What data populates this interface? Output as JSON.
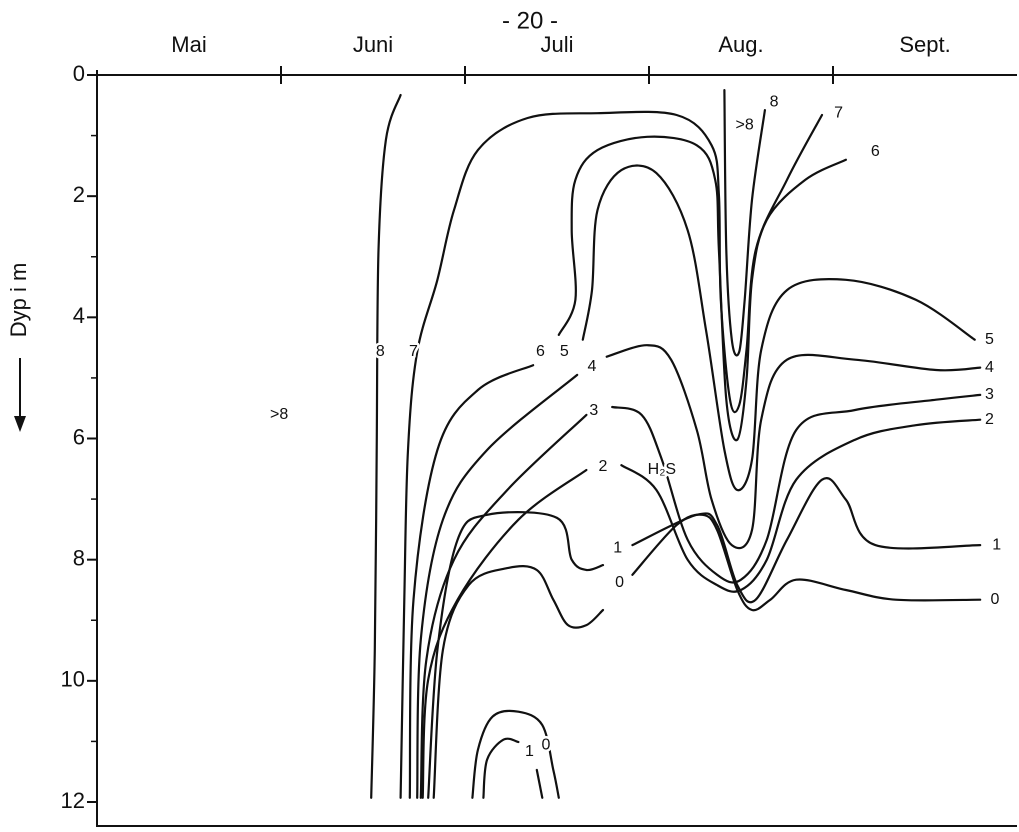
{
  "chart_data": {
    "type": "contour",
    "page_number": "- 20 -",
    "y_label": "Dyp i m",
    "categories": [
      "Mai",
      "Juni",
      "Juli",
      "Aug.",
      "Sept."
    ],
    "xlim": [
      0,
      5
    ],
    "xticks": [
      1,
      2,
      3,
      4
    ],
    "ylim": [
      0,
      12
    ],
    "y_reversed": true,
    "yticks": [
      0,
      2,
      4,
      6,
      8,
      10,
      12
    ],
    "yminor_ticks": [
      1,
      3,
      5,
      7,
      9,
      11
    ],
    "color": "#111111",
    "series": [
      {
        "x": [
          1.65,
          1.57,
          1.53,
          1.52,
          1.51,
          1.49,
          null,
          3.41,
          3.42,
          3.45,
          3.49,
          3.52,
          3.56,
          3.63
        ],
        "values": [
          0.33,
          1.07,
          2.89,
          6.19,
          9.49,
          11.93,
          null,
          0.25,
          2.89,
          4.37,
          4.57,
          3.71,
          2.06,
          0.58
        ]
      },
      {
        "x": [
          1.65,
          1.67,
          1.69,
          1.74,
          1.85,
          1.94,
          2.07,
          2.34,
          2.72,
          3.15,
          3.34,
          3.38,
          3.39,
          3.44,
          3.49,
          3.53,
          3.58,
          3.75,
          3.94
        ],
        "values": [
          11.93,
          8.66,
          6.19,
          4.57,
          3.38,
          2.23,
          1.24,
          0.71,
          0.63,
          0.66,
          1.16,
          1.98,
          3.71,
          5.36,
          5.45,
          4.54,
          2.89,
          1.73,
          0.66
        ]
      },
      {
        "x": [
          1.7,
          1.72,
          1.85,
          2.07,
          2.37,
          null,
          2.51,
          2.6,
          2.58,
          2.6,
          2.72,
          2.99,
          3.26,
          3.36,
          3.38,
          3.42,
          3.48,
          3.53,
          3.56,
          3.64,
          3.85,
          4.07
        ],
        "values": [
          11.93,
          8.66,
          6.19,
          5.2,
          4.79,
          null,
          4.29,
          3.71,
          2.56,
          1.73,
          1.24,
          1.02,
          1.16,
          1.73,
          2.89,
          5.36,
          6.02,
          5.03,
          3.38,
          2.39,
          1.73,
          1.4
        ]
      },
      {
        "x": [
          2.64,
          2.69,
          2.72,
          2.85,
          3.04,
          3.21,
          3.31,
          3.41,
          3.48,
          3.56,
          3.61,
          3.75,
          4.07,
          4.45,
          4.77
        ],
        "values": [
          4.37,
          3.55,
          2.23,
          1.57,
          1.62,
          2.56,
          4.21,
          6.19,
          6.85,
          6.35,
          4.54,
          3.55,
          3.38,
          3.71,
          4.37
        ]
      },
      {
        "x": [
          1.74,
          1.76,
          1.88,
          2.12,
          2.61,
          null,
          2.77,
          2.99,
          3.12,
          3.26,
          3.34,
          3.45,
          3.56,
          3.61,
          3.75,
          4.12,
          4.56,
          4.8
        ],
        "values": [
          11.93,
          9.32,
          7.34,
          6.19,
          4.95,
          null,
          4.65,
          4.46,
          4.7,
          5.86,
          7.01,
          7.76,
          7.51,
          5.69,
          4.7,
          4.7,
          4.87,
          4.83
        ]
      },
      {
        "x": [
          1.76,
          1.79,
          1.94,
          2.23,
          2.66,
          null,
          2.8,
          2.96,
          3.07,
          3.21,
          3.37,
          3.5,
          3.64,
          3.8,
          4.12,
          4.56,
          4.8
        ],
        "values": [
          11.93,
          9.65,
          8.0,
          6.85,
          5.61,
          null,
          5.48,
          5.61,
          6.35,
          7.67,
          8.25,
          8.33,
          7.67,
          5.86,
          5.53,
          5.36,
          5.28
        ]
      },
      {
        "x": [
          1.77,
          1.8,
          1.96,
          2.29,
          2.66,
          null,
          2.85,
          3.04,
          3.21,
          3.37,
          3.5,
          3.64,
          3.8,
          4.12,
          4.45,
          4.8
        ],
        "values": [
          11.93,
          9.98,
          8.66,
          7.34,
          6.52,
          null,
          6.44,
          6.85,
          8.0,
          8.42,
          8.5,
          8.0,
          6.68,
          6.02,
          5.78,
          5.69
        ]
      },
      {
        "x": [
          1.8,
          1.85,
          1.96,
          2.12,
          2.5,
          2.58,
          2.66,
          2.75,
          null,
          2.91,
          3.26,
          3.37,
          3.48,
          3.58,
          3.75,
          3.94,
          4.07,
          4.23,
          4.8,
          null,
          2.1,
          2.12,
          2.21,
          2.29,
          null,
          2.39,
          2.42
        ],
        "values": [
          11.93,
          9.49,
          7.67,
          7.26,
          7.31,
          8.0,
          8.17,
          8.09,
          null,
          7.76,
          7.26,
          7.43,
          8.42,
          8.66,
          7.67,
          6.68,
          7.01,
          7.76,
          7.76,
          null,
          11.93,
          11.3,
          10.97,
          11.01,
          null,
          11.47,
          11.93
        ]
      },
      {
        "x": [
          1.83,
          1.88,
          2.02,
          2.23,
          2.39,
          2.48,
          2.56,
          2.66,
          2.75,
          null,
          2.91,
          3.15,
          3.29,
          3.37,
          3.48,
          3.56,
          3.66,
          3.8,
          4.07,
          4.34,
          4.8,
          null,
          2.04,
          2.07,
          2.15,
          2.29,
          2.42,
          2.48,
          2.51
        ],
        "values": [
          11.93,
          9.49,
          8.42,
          8.14,
          8.17,
          8.66,
          9.08,
          9.08,
          8.83,
          null,
          8.25,
          7.43,
          7.26,
          7.51,
          8.5,
          8.83,
          8.66,
          8.33,
          8.5,
          8.66,
          8.66,
          null,
          11.93,
          11.14,
          10.59,
          10.51,
          10.73,
          11.47,
          11.93
        ]
      }
    ],
    "annotations": [
      {
        "text": "8",
        "x": 1.54,
        "y": 4.57
      },
      {
        "text": "7",
        "x": 1.72,
        "y": 4.57
      },
      {
        "text": "6",
        "x": 2.41,
        "y": 4.57
      },
      {
        "text": "5",
        "x": 2.54,
        "y": 4.57
      },
      {
        "text": "4",
        "x": 2.69,
        "y": 4.82
      },
      {
        "text": "3",
        "x": 2.7,
        "y": 5.54
      },
      {
        "text": "2",
        "x": 2.75,
        "y": 6.47
      },
      {
        "text": "1",
        "x": 2.83,
        "y": 7.81
      },
      {
        "text": "0",
        "x": 2.84,
        "y": 8.38
      },
      {
        "text": ">8",
        "x": 0.99,
        "y": 5.61
      },
      {
        "text": ">8",
        "x": 3.52,
        "y": 0.83
      },
      {
        "text": "8",
        "x": 3.68,
        "y": 0.45
      },
      {
        "text": "7",
        "x": 4.03,
        "y": 0.63
      },
      {
        "text": "6",
        "x": 4.23,
        "y": 1.27
      },
      {
        "text": "5",
        "x": 4.85,
        "y": 4.37
      },
      {
        "text": "4",
        "x": 4.85,
        "y": 4.83
      },
      {
        "text": "3",
        "x": 4.85,
        "y": 5.28
      },
      {
        "text": "2",
        "x": 4.85,
        "y": 5.69
      },
      {
        "text": "1",
        "x": 4.89,
        "y": 7.76
      },
      {
        "text": "0",
        "x": 4.88,
        "y": 8.66
      },
      {
        "text": "1",
        "x": 2.35,
        "y": 11.17
      },
      {
        "text": "0",
        "x": 2.44,
        "y": 11.06
      },
      {
        "text": "H₂S",
        "x": 3.07,
        "y": 6.52
      }
    ]
  }
}
